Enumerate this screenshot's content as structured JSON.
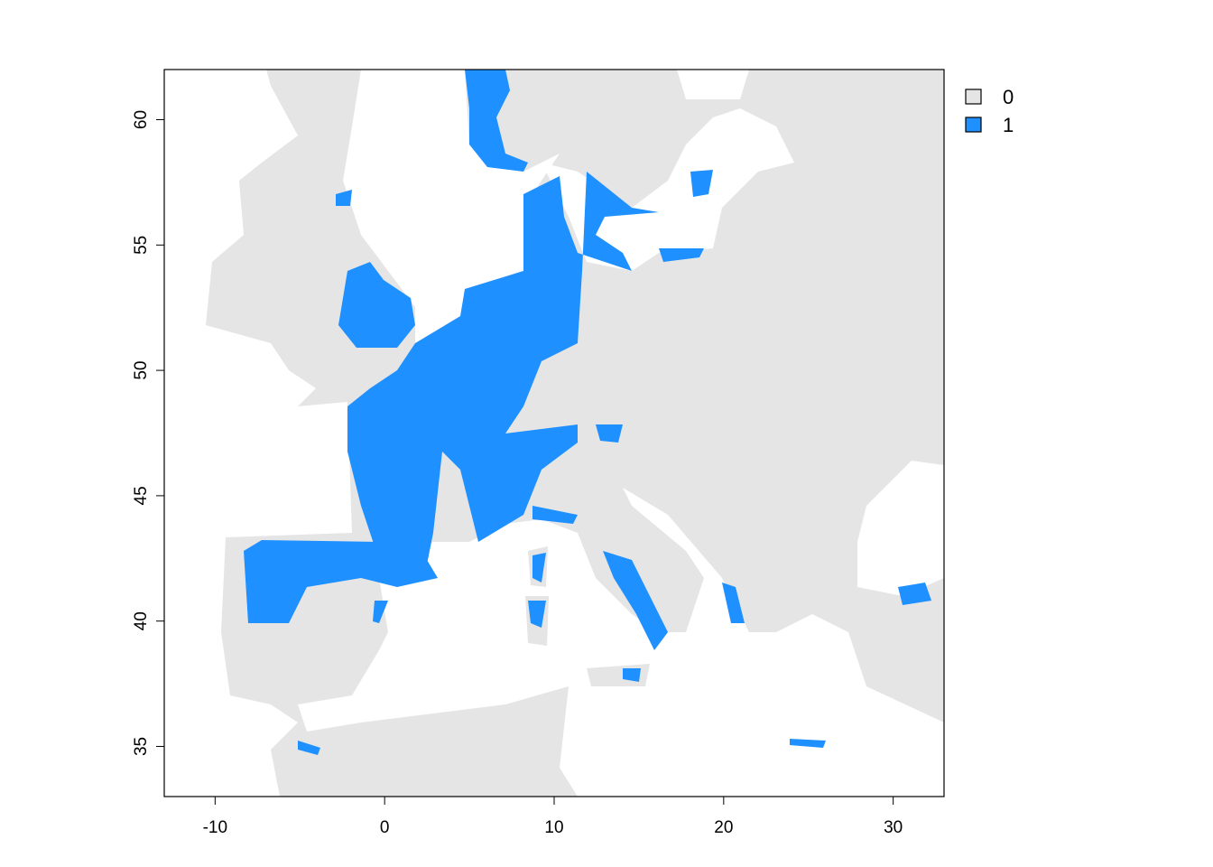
{
  "chart_data": {
    "type": "heatmap",
    "subtype": "categorical raster map",
    "title": "",
    "xlabel": "",
    "ylabel": "",
    "xlim": [
      -13,
      33
    ],
    "ylim": [
      33,
      62
    ],
    "x_ticks": [
      -10,
      0,
      10,
      20,
      30
    ],
    "y_ticks": [
      35,
      40,
      45,
      50,
      55,
      60
    ],
    "x_tick_labels": [
      "-10",
      "0",
      "10",
      "20",
      "30"
    ],
    "y_tick_labels": [
      "35",
      "40",
      "45",
      "50",
      "55",
      "60"
    ],
    "grid": false,
    "legend_position": "right-top",
    "legend": [
      {
        "label": "0",
        "color": "#E5E5E5"
      },
      {
        "label": "1",
        "color": "#1E90FF"
      }
    ],
    "no_data_color": "#FFFFFF"
  }
}
